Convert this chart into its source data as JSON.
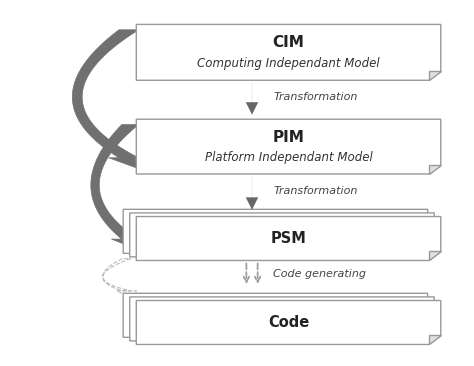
{
  "bg_color": "#ffffff",
  "box_edge_color": "#999999",
  "box_face_color": "#ffffff",
  "arrow_color": "#666666",
  "dashed_arrow_color": "#aaaaaa",
  "big_arrow_color": "#707070",
  "cim_title": "CIM",
  "cim_subtitle": "Computing Independant Model",
  "pim_title": "PIM",
  "pim_subtitle": "Platform Independant Model",
  "psm_title": "PSM",
  "code_title": "Code",
  "trans1_label": "Transformation",
  "trans2_label": "Transformation",
  "codegen_label": "Code generating",
  "figsize": [
    4.74,
    3.66
  ],
  "dpi": 100
}
